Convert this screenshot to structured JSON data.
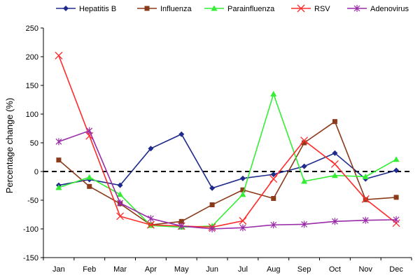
{
  "chart_data": {
    "type": "line",
    "title": "",
    "xlabel": "",
    "ylabel": "Percentage change (%)",
    "categories": [
      "Jan",
      "Feb",
      "Mar",
      "Apr",
      "May",
      "Jun",
      "Jul",
      "Aug",
      "Sep",
      "Oct",
      "Nov",
      "Dec"
    ],
    "ylim": [
      -150,
      250
    ],
    "yticks": [
      250,
      200,
      150,
      100,
      50,
      0,
      -50,
      -100,
      -150
    ],
    "grid": false,
    "zero_line": "dashed",
    "legend_position": "top",
    "series": [
      {
        "name": "Hepatitis B",
        "color": "#1f2a8c",
        "marker": "diamond",
        "values": [
          -24,
          -14,
          -24,
          40,
          65,
          -29,
          -12,
          -5,
          9,
          32,
          -13,
          2
        ]
      },
      {
        "name": "Influenza",
        "color": "#8b3a1a",
        "marker": "square",
        "values": [
          20,
          -26,
          -56,
          -93,
          -87,
          -58,
          -32,
          -47,
          50,
          87,
          -49,
          -45
        ]
      },
      {
        "name": "Parainfluenza",
        "color": "#33ee33",
        "marker": "triangle",
        "values": [
          -28,
          -10,
          -40,
          -94,
          -97,
          -95,
          -40,
          135,
          -17,
          -7,
          -9,
          21
        ]
      },
      {
        "name": "RSV",
        "color": "#ff2a2a",
        "marker": "x",
        "values": [
          202,
          62,
          -78,
          -93,
          -95,
          -97,
          -86,
          -13,
          54,
          13,
          -48,
          -90
        ]
      },
      {
        "name": "Adenovirus",
        "color": "#9a2aa8",
        "marker": "star",
        "values": [
          52,
          71,
          -55,
          -82,
          -95,
          -100,
          -98,
          -93,
          -92,
          -87,
          -85,
          -84
        ]
      }
    ]
  }
}
